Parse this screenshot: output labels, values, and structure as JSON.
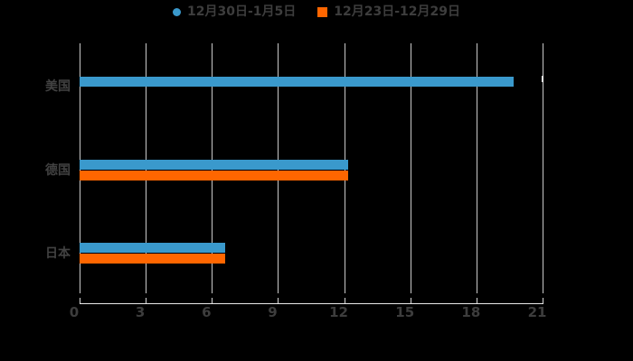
{
  "legend": {
    "items": [
      {
        "label": "12月30日-1月5日",
        "shape": "circle",
        "color": "#3a99cc"
      },
      {
        "label": "12月23日-12月29日",
        "shape": "square",
        "color": "#ff6600"
      }
    ]
  },
  "chart_data": {
    "type": "bar",
    "orientation": "horizontal",
    "title": "",
    "xlabel": "",
    "ylabel": "",
    "categories": [
      "美国",
      "德国",
      "日本"
    ],
    "series": [
      {
        "name": "12月30日-1月5日",
        "color": "#3a99cc",
        "values": [
          19.7,
          12.2,
          6.6
        ]
      },
      {
        "name": "12月23日-12月29日",
        "color": "#ff6600",
        "values": [
          null,
          12.2,
          6.6
        ]
      }
    ],
    "xlim": [
      0,
      21
    ],
    "xticks": [
      0,
      3,
      6,
      9,
      12,
      15,
      18,
      21
    ],
    "grid": true,
    "legend_position": "top"
  },
  "colors": {
    "background": "#000000",
    "gridline": "#c9c9c9",
    "axis_line": "#e9e9e9",
    "tick": "#d6d6d6",
    "tick_label_text": "#3d3d3d",
    "category_label_text": "#424242",
    "legend_text": "#3d3d3d",
    "series_blue": "#3a99cc",
    "series_orange": "#ff6600"
  }
}
